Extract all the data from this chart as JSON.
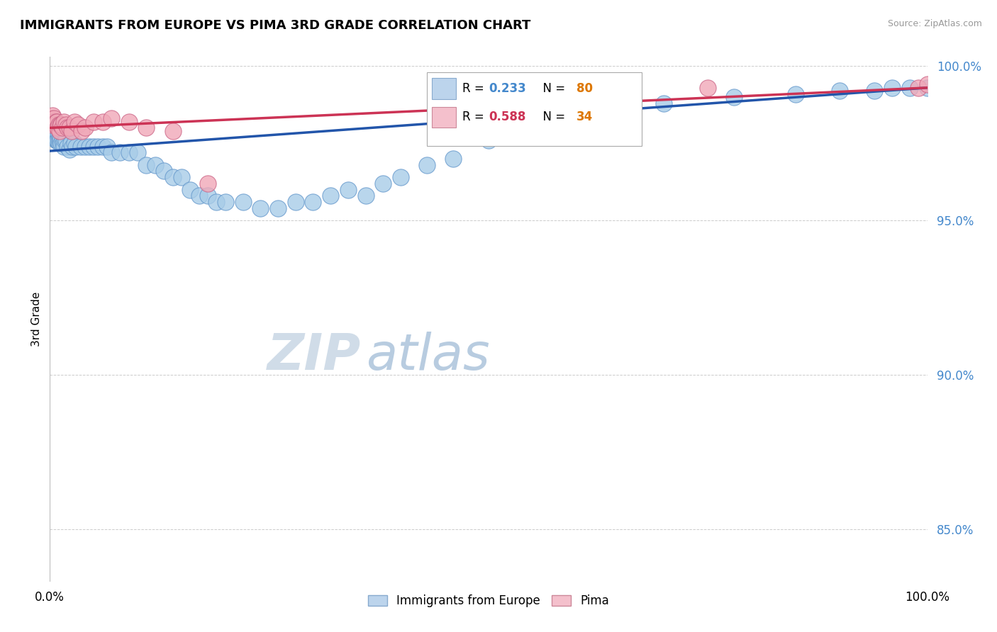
{
  "title": "IMMIGRANTS FROM EUROPE VS PIMA 3RD GRADE CORRELATION CHART",
  "source_text": "Source: ZipAtlas.com",
  "ylabel": "3rd Grade",
  "series": [
    {
      "name": "Immigrants from Europe",
      "color": "#A8CCE8",
      "edge_color": "#6699CC",
      "R": 0.233,
      "N": 80,
      "trend_color": "#2255AA",
      "trend_start_x": 0.0,
      "trend_start_y": 0.9725,
      "trend_end_x": 1.0,
      "trend_end_y": 0.993,
      "x": [
        0.001,
        0.002,
        0.002,
        0.003,
        0.003,
        0.004,
        0.004,
        0.005,
        0.005,
        0.006,
        0.006,
        0.007,
        0.007,
        0.008,
        0.008,
        0.009,
        0.009,
        0.01,
        0.01,
        0.011,
        0.011,
        0.012,
        0.012,
        0.013,
        0.014,
        0.015,
        0.016,
        0.017,
        0.018,
        0.02,
        0.022,
        0.024,
        0.026,
        0.028,
        0.03,
        0.035,
        0.04,
        0.045,
        0.05,
        0.055,
        0.06,
        0.065,
        0.07,
        0.08,
        0.09,
        0.1,
        0.11,
        0.12,
        0.13,
        0.14,
        0.15,
        0.16,
        0.17,
        0.18,
        0.19,
        0.2,
        0.22,
        0.24,
        0.26,
        0.28,
        0.3,
        0.32,
        0.34,
        0.36,
        0.38,
        0.4,
        0.43,
        0.46,
        0.5,
        0.55,
        0.6,
        0.65,
        0.7,
        0.78,
        0.85,
        0.9,
        0.94,
        0.96,
        0.98,
        1.0
      ],
      "y": [
        0.982,
        0.979,
        0.981,
        0.98,
        0.978,
        0.98,
        0.978,
        0.979,
        0.977,
        0.98,
        0.978,
        0.979,
        0.976,
        0.978,
        0.976,
        0.978,
        0.976,
        0.978,
        0.976,
        0.977,
        0.975,
        0.977,
        0.976,
        0.975,
        0.976,
        0.975,
        0.974,
        0.976,
        0.976,
        0.974,
        0.973,
        0.975,
        0.974,
        0.975,
        0.974,
        0.974,
        0.974,
        0.974,
        0.974,
        0.974,
        0.974,
        0.974,
        0.972,
        0.972,
        0.972,
        0.972,
        0.968,
        0.968,
        0.966,
        0.964,
        0.964,
        0.96,
        0.958,
        0.958,
        0.956,
        0.956,
        0.956,
        0.954,
        0.954,
        0.956,
        0.956,
        0.958,
        0.96,
        0.958,
        0.962,
        0.964,
        0.968,
        0.97,
        0.976,
        0.98,
        0.984,
        0.986,
        0.988,
        0.99,
        0.991,
        0.992,
        0.992,
        0.993,
        0.993,
        0.993
      ]
    },
    {
      "name": "Pima",
      "color": "#F0A8B8",
      "edge_color": "#CC6688",
      "R": 0.588,
      "N": 34,
      "trend_color": "#CC3355",
      "trend_start_x": 0.0,
      "trend_start_y": 0.98,
      "trend_end_x": 1.0,
      "trend_end_y": 0.993,
      "x": [
        0.001,
        0.002,
        0.003,
        0.004,
        0.005,
        0.006,
        0.007,
        0.008,
        0.009,
        0.01,
        0.011,
        0.012,
        0.013,
        0.014,
        0.016,
        0.018,
        0.02,
        0.022,
        0.025,
        0.028,
        0.032,
        0.036,
        0.04,
        0.05,
        0.06,
        0.07,
        0.09,
        0.11,
        0.14,
        0.18,
        0.6,
        0.75,
        0.99,
        1.0
      ],
      "y": [
        0.983,
        0.981,
        0.984,
        0.982,
        0.983,
        0.981,
        0.982,
        0.982,
        0.98,
        0.981,
        0.979,
        0.981,
        0.981,
        0.98,
        0.982,
        0.981,
        0.98,
        0.98,
        0.979,
        0.982,
        0.981,
        0.979,
        0.98,
        0.982,
        0.982,
        0.983,
        0.982,
        0.98,
        0.979,
        0.962,
        0.988,
        0.993,
        0.993,
        0.994
      ]
    }
  ],
  "yticks": [
    0.85,
    0.9,
    0.95,
    1.0
  ],
  "ytick_labels": [
    "85.0%",
    "90.0%",
    "95.0%",
    "100.0%"
  ],
  "ytick_color": "#4488CC",
  "ylim": [
    0.833,
    1.003
  ],
  "xlim": [
    0.0,
    1.0
  ],
  "grid_color": "#CCCCCC",
  "legend_R_color_blue": "#4488CC",
  "legend_R_color_pink": "#CC3355",
  "legend_N_color": "#DD7700",
  "watermark_zip_color": "#C8D8E8",
  "watermark_atlas_color": "#C8D8E8"
}
